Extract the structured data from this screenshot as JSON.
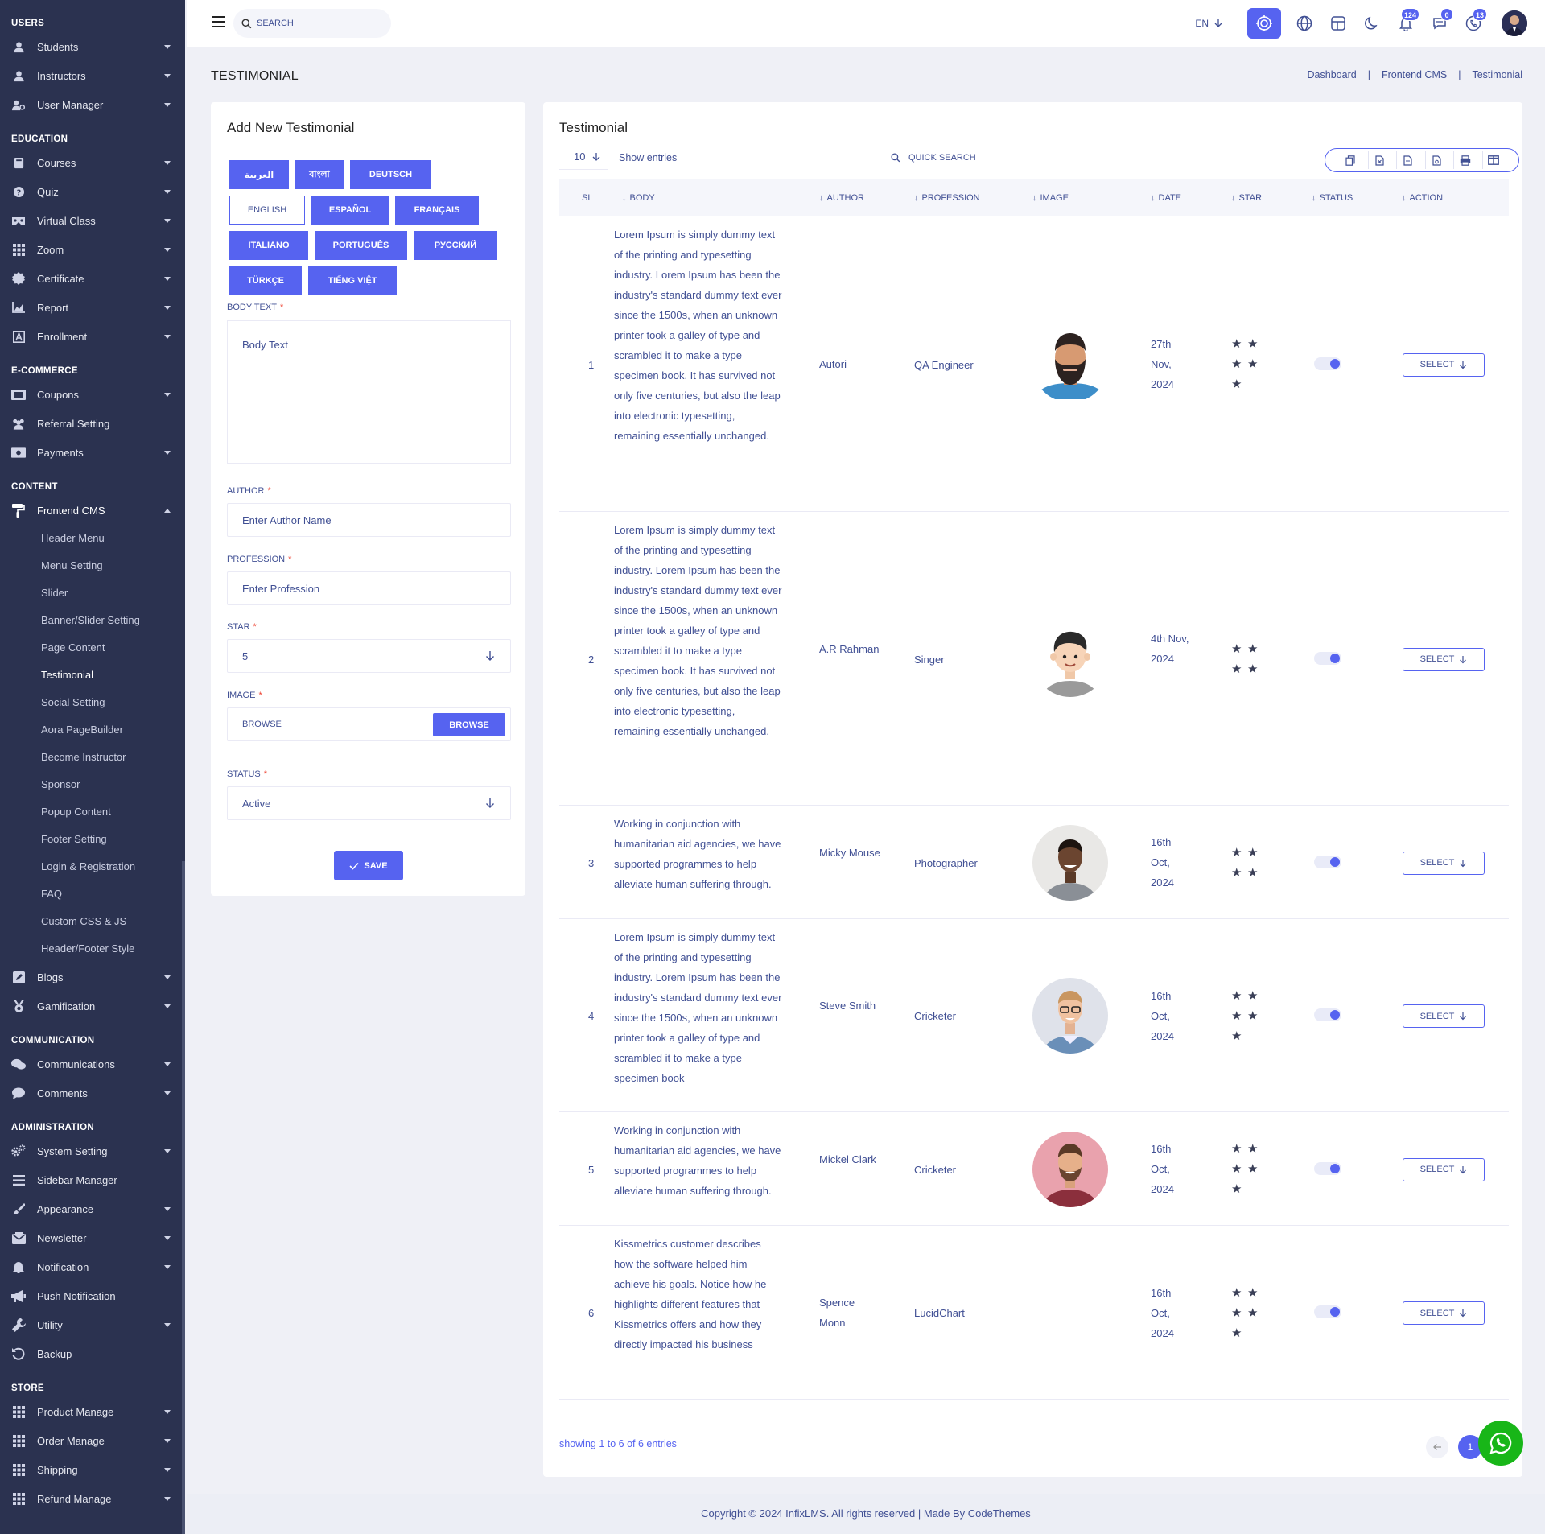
{
  "sidebar": {
    "sections": [
      {
        "title": "USERS",
        "items": [
          {
            "label": "Students",
            "icon": "user-icon",
            "caret": "down"
          },
          {
            "label": "Instructors",
            "icon": "user-icon",
            "caret": "down"
          },
          {
            "label": "User Manager",
            "icon": "users-cog-icon",
            "caret": "down"
          }
        ]
      },
      {
        "title": "EDUCATION",
        "items": [
          {
            "label": "Courses",
            "icon": "book-icon",
            "caret": "down"
          },
          {
            "label": "Quiz",
            "icon": "question-icon",
            "caret": "down"
          },
          {
            "label": "Virtual Class",
            "icon": "vr-icon",
            "caret": "down"
          },
          {
            "label": "Zoom",
            "icon": "grid-icon",
            "caret": "down"
          },
          {
            "label": "Certificate",
            "icon": "badge-icon",
            "caret": "down"
          },
          {
            "label": "Report",
            "icon": "chart-icon",
            "caret": "down"
          },
          {
            "label": "Enrollment",
            "icon": "enroll-icon",
            "caret": "down"
          }
        ]
      },
      {
        "title": "E-COMMERCE",
        "items": [
          {
            "label": "Coupons",
            "icon": "coupon-icon",
            "caret": "down"
          },
          {
            "label": "Referral Setting",
            "icon": "users-icon",
            "caret": ""
          },
          {
            "label": "Payments",
            "icon": "money-icon",
            "caret": "down"
          }
        ]
      },
      {
        "title": "CONTENT",
        "items": [
          {
            "label": "Frontend CMS",
            "icon": "paint-roller-icon",
            "caret": "up",
            "active": true,
            "children": [
              {
                "label": "Header Menu"
              },
              {
                "label": "Menu Setting"
              },
              {
                "label": "Slider"
              },
              {
                "label": "Banner/Slider Setting"
              },
              {
                "label": "Page Content"
              },
              {
                "label": "Testimonial",
                "active": true
              },
              {
                "label": "Social Setting"
              },
              {
                "label": "Aora PageBuilder"
              },
              {
                "label": "Become Instructor"
              },
              {
                "label": "Sponsor"
              },
              {
                "label": "Popup Content"
              },
              {
                "label": "Footer Setting"
              },
              {
                "label": "Login & Registration"
              },
              {
                "label": "FAQ"
              },
              {
                "label": "Custom CSS & JS"
              },
              {
                "label": "Header/Footer Style"
              }
            ]
          },
          {
            "label": "Blogs",
            "icon": "edit-icon",
            "caret": "down"
          },
          {
            "label": "Gamification",
            "icon": "medal-icon",
            "caret": "down"
          }
        ]
      },
      {
        "title": "COMMUNICATION",
        "items": [
          {
            "label": "Communications",
            "icon": "chat-icon",
            "caret": "down"
          },
          {
            "label": "Comments",
            "icon": "comment-icon",
            "caret": "down"
          }
        ]
      },
      {
        "title": "ADMINISTRATION",
        "items": [
          {
            "label": "System Setting",
            "icon": "cogs-icon",
            "caret": "down"
          },
          {
            "label": "Sidebar Manager",
            "icon": "bars-icon",
            "caret": ""
          },
          {
            "label": "Appearance",
            "icon": "brush-icon",
            "caret": "down"
          },
          {
            "label": "Newsletter",
            "icon": "newsletter-icon",
            "caret": "down"
          },
          {
            "label": "Notification",
            "icon": "bell-icon",
            "caret": "down"
          },
          {
            "label": "Push Notification",
            "icon": "megaphone-icon",
            "caret": ""
          },
          {
            "label": "Utility",
            "icon": "wrench-icon",
            "caret": "down"
          },
          {
            "label": "Backup",
            "icon": "backup-icon",
            "caret": ""
          }
        ]
      },
      {
        "title": "STORE",
        "items": [
          {
            "label": "Product Manage",
            "icon": "grid-icon",
            "caret": "down"
          },
          {
            "label": "Order Manage",
            "icon": "grid-icon",
            "caret": "down"
          },
          {
            "label": "Shipping",
            "icon": "grid-icon",
            "caret": "down"
          },
          {
            "label": "Refund Manage",
            "icon": "grid-icon",
            "caret": "down"
          }
        ]
      }
    ]
  },
  "header": {
    "search_placeholder": "SEARCH",
    "language": "EN",
    "notifications": {
      "bell": "124",
      "messages": "0",
      "phone": "13"
    }
  },
  "page": {
    "title": "TESTIMONIAL",
    "breadcrumb": [
      "Dashboard",
      "Frontend CMS",
      "Testimonial"
    ]
  },
  "form": {
    "title": "Add New Testimonial",
    "languages": [
      "العربية",
      "বাংলা",
      "DEUTSCH",
      "ENGLISH",
      "ESPAÑOL",
      "FRANÇAIS",
      "ITALIANO",
      "PORTUGUÊS",
      "РУССКИЙ",
      "TÜRKÇE",
      "TIẾNG VIỆT"
    ],
    "active_language": "ENGLISH",
    "body_label": "BODY TEXT",
    "body_placeholder": "Body Text",
    "author_label": "AUTHOR",
    "author_placeholder": "Enter Author Name",
    "profession_label": "PROFESSION",
    "profession_placeholder": "Enter Profession",
    "star_label": "STAR",
    "star_value": "5",
    "image_label": "IMAGE",
    "image_placeholder": "BROWSE",
    "browse_label": "BROWSE",
    "status_label": "STATUS",
    "status_value": "Active",
    "save_label": "SAVE"
  },
  "table": {
    "title": "Testimonial",
    "entries": "10",
    "show_entries": "Show entries",
    "quick_search": "QUICK SEARCH",
    "columns": [
      "SL",
      "BODY",
      "AUTHOR",
      "PROFESSION",
      "IMAGE",
      "DATE",
      "STAR",
      "STATUS",
      "ACTION"
    ],
    "rows": [
      {
        "sl": "1",
        "body": "Lorem Ipsum is simply dummy text of the printing and typesetting industry. Lorem Ipsum has been the industry's standard dummy text ever since the 1500s, when an unknown printer took a galley of type and scrambled it to make a type specimen book. It has survived not only five centuries, but also the leap into electronic typesetting, remaining essentially unchanged.",
        "author": "Autori",
        "profession": "QA Engineer",
        "date": "27th Nov, 2024",
        "stars": 5,
        "status": true,
        "action": "SELECT",
        "image": "bearded-man-avatar"
      },
      {
        "sl": "2",
        "body": "Lorem Ipsum is simply dummy text of the printing and typesetting industry. Lorem Ipsum has been the industry's standard dummy text ever since the 1500s, when an unknown printer took a galley of type and scrambled it to make a type specimen book. It has survived not only five centuries, but also the leap into electronic typesetting, remaining essentially unchanged.",
        "author": "A.R Rahman",
        "profession": "Singer",
        "date": "4th Nov, 2024",
        "stars": 4,
        "status": true,
        "action": "SELECT",
        "image": "cartoon-boy-avatar"
      },
      {
        "sl": "3",
        "body": "Working in conjunction with humanitarian aid agencies, we have supported programmes to help alleviate human suffering through.",
        "author": "Micky Mouse",
        "profession": "Photographer",
        "date": "16th Oct, 2024",
        "stars": 4,
        "status": true,
        "action": "SELECT",
        "image": "smiling-man-photo"
      },
      {
        "sl": "4",
        "body": "Lorem Ipsum is simply dummy text of the printing and typesetting industry. Lorem Ipsum has been the industry's standard dummy text ever since the 1500s, when an unknown printer took a galley of type and scrambled it to make a type specimen book",
        "author": "Steve Smith",
        "profession": "Cricketer",
        "date": "16th Oct, 2024",
        "stars": 5,
        "status": true,
        "action": "SELECT",
        "image": "glasses-man-photo"
      },
      {
        "sl": "5",
        "body": "Working in conjunction with humanitarian aid agencies, we have supported programmes to help alleviate human suffering through.",
        "author": "Mickel Clark",
        "profession": "Cricketer",
        "date": "16th Oct, 2024",
        "stars": 5,
        "status": true,
        "action": "SELECT",
        "image": "pink-bg-man-photo"
      },
      {
        "sl": "6",
        "body": "Kissmetrics customer describes how the software helped him achieve his goals. Notice how he highlights different features that Kissmetrics offers and how they directly impacted his business",
        "author": "Spence Monn",
        "profession": "LucidChart",
        "date": "16th Oct, 2024",
        "stars": 5,
        "status": true,
        "action": "SELECT",
        "image": "none"
      }
    ],
    "showing": "showing 1 to 6 of 6 entries",
    "current_page": "1"
  },
  "footer": {
    "text": "Copyright © 2024 InfixLMS. All rights reserved | Made By CodeThemes"
  },
  "colors": {
    "sidebar_bg": "#2b3250",
    "primary": "#5663f0",
    "text": "#415094",
    "whatsapp": "#18b618"
  }
}
